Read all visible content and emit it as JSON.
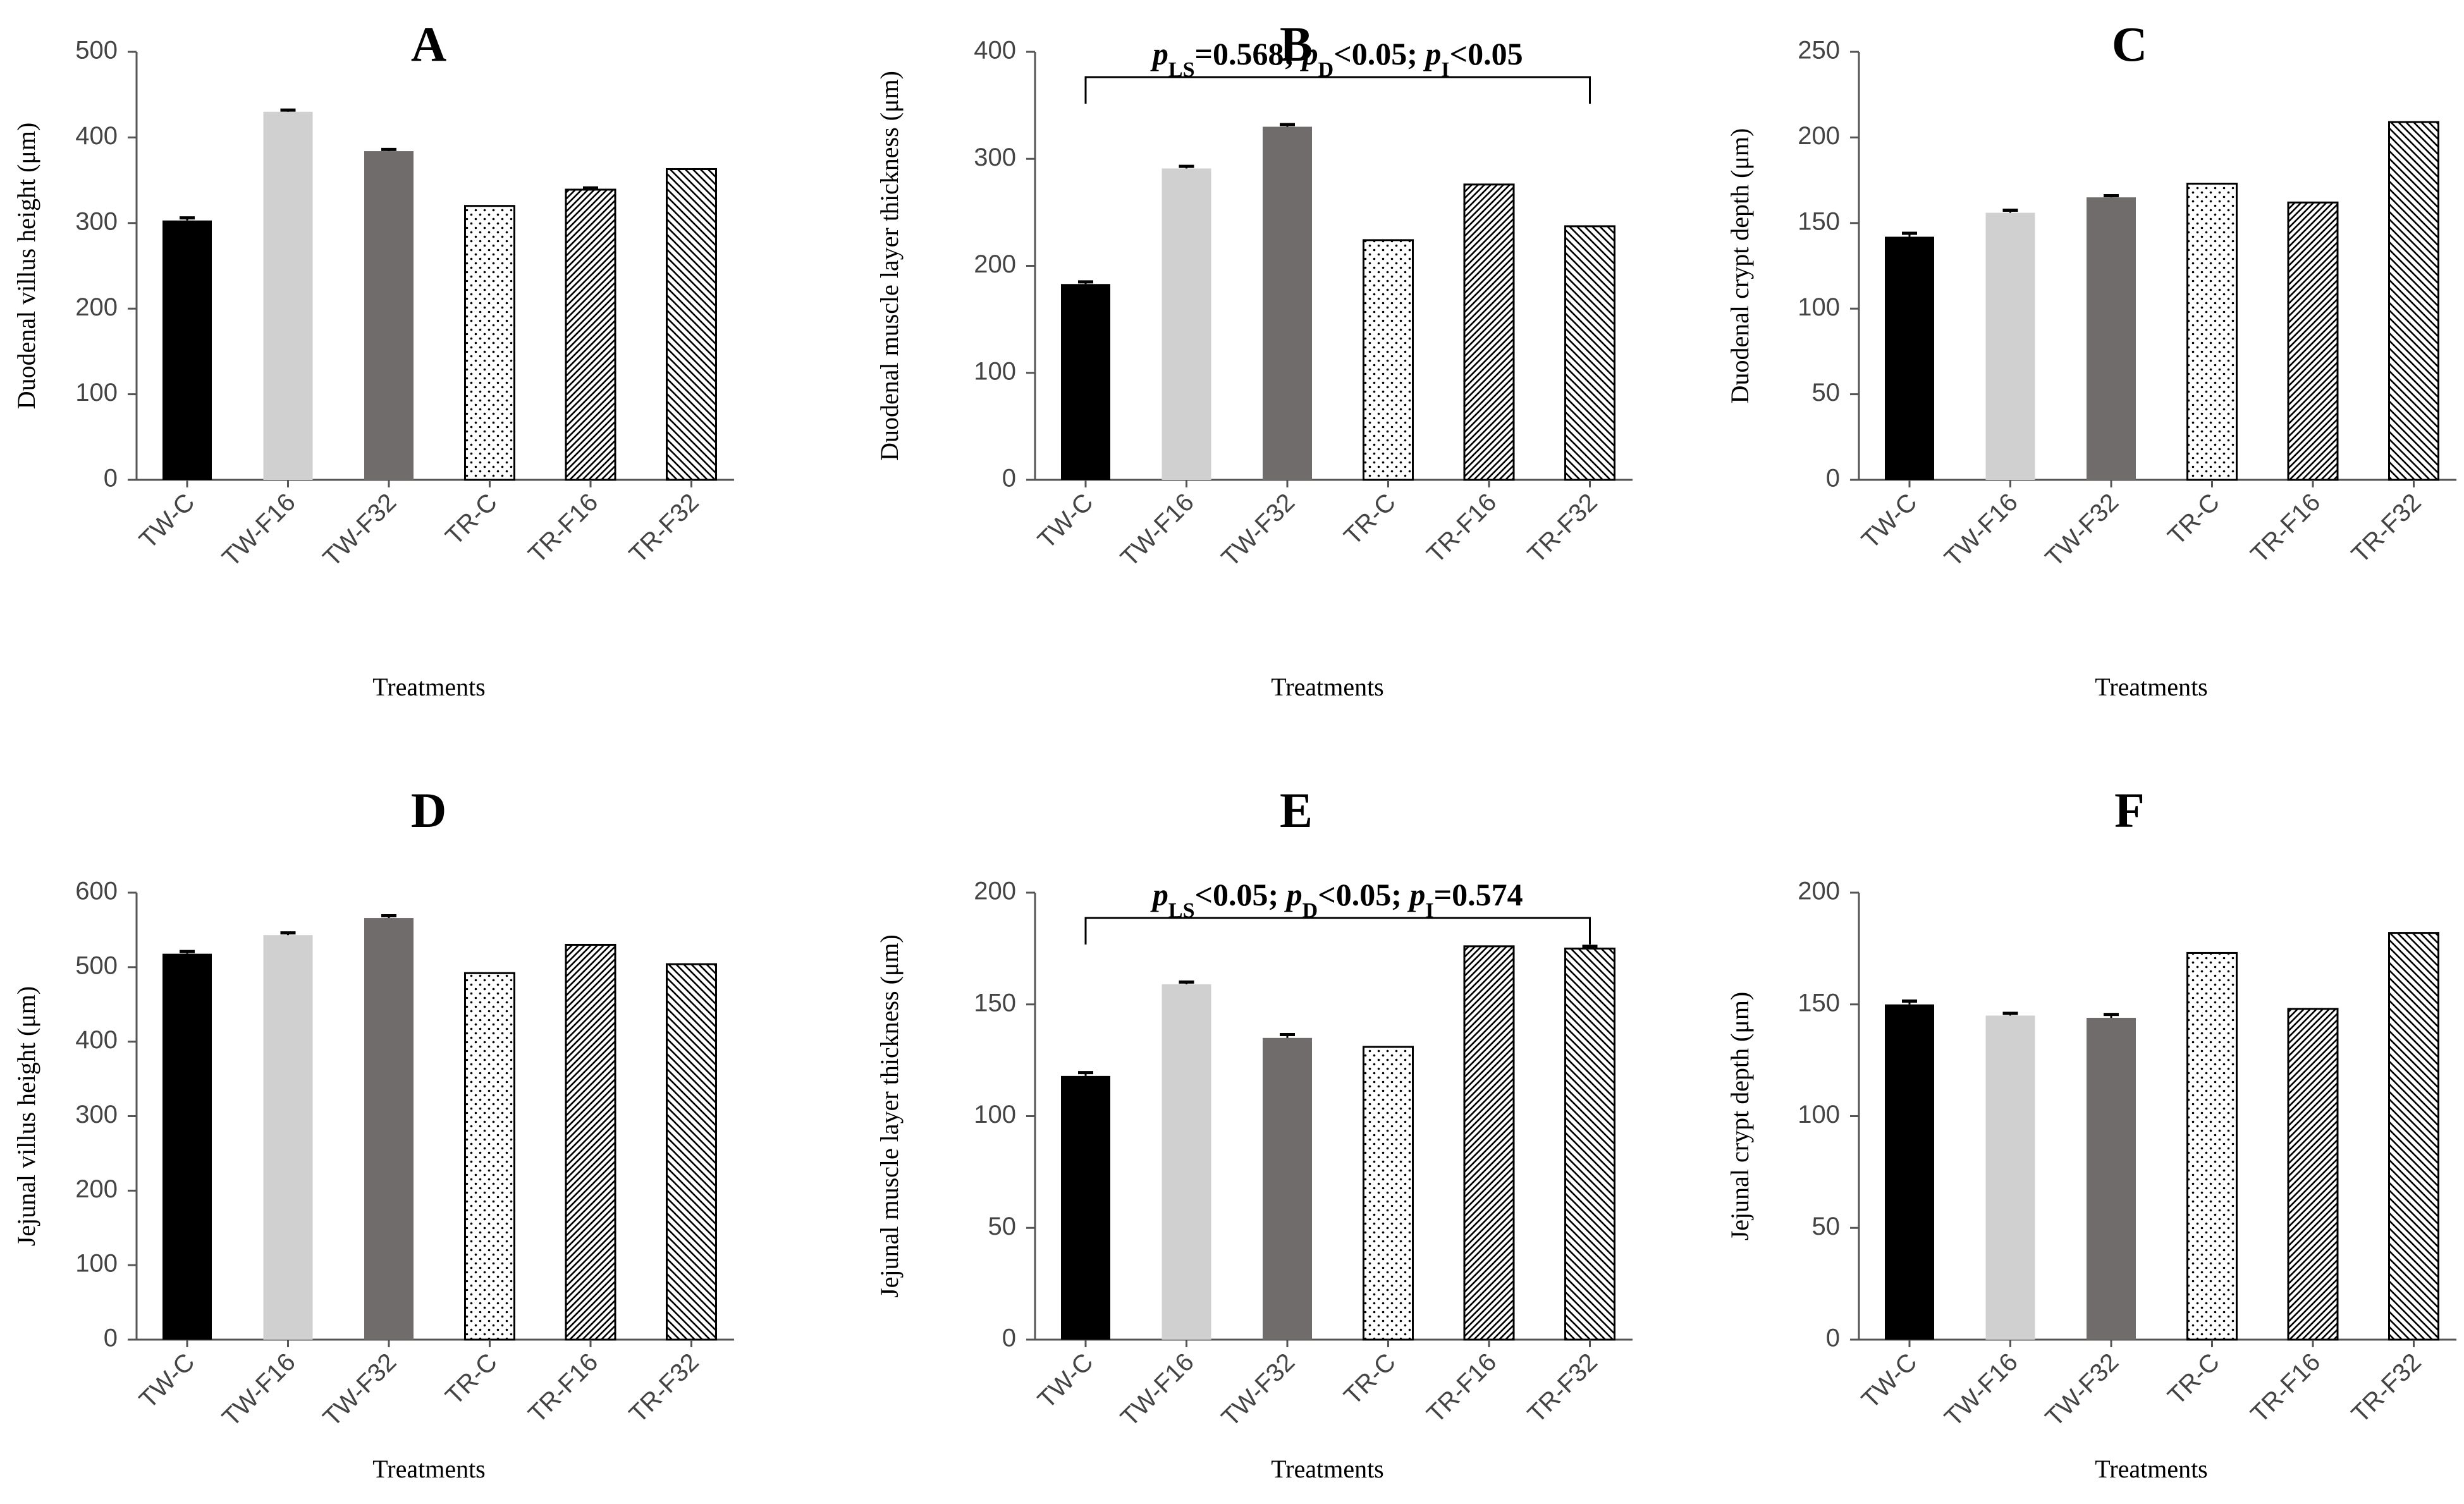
{
  "figure": {
    "shared_categories": [
      "TW-C",
      "TW-F16",
      "TW-F32",
      "TR-C",
      "TR-F16",
      "TR-F32"
    ]
  },
  "chart_data": [
    {
      "panel": "A",
      "type": "bar",
      "title": "A",
      "ylabel": "Duodenal  villus  height  (μm)",
      "xlabel": "Treatments",
      "categories": [
        "TW-C",
        "TW-F16",
        "TW-F32",
        "TR-C",
        "TR-F16",
        "TR-F32"
      ],
      "values": [
        303,
        430,
        384,
        320,
        339,
        363
      ],
      "errors": [
        3,
        2,
        2,
        0,
        2,
        0
      ],
      "ylim": [
        0,
        500
      ],
      "yticks": [
        0,
        100,
        200,
        300,
        400,
        500
      ],
      "annotation": null
    },
    {
      "panel": "B",
      "type": "bar",
      "title": "B",
      "ylabel": "Duodenal  muscle  layer  thickness  (μm)",
      "xlabel": "Treatments",
      "categories": [
        "TW-C",
        "TW-F16",
        "TW-F32",
        "TR-C",
        "TR-F16",
        "TR-F32"
      ],
      "values": [
        183,
        291,
        330,
        224,
        276,
        237
      ],
      "errors": [
        2,
        2,
        2,
        0,
        0,
        0
      ],
      "ylim": [
        0,
        400
      ],
      "yticks": [
        0,
        100,
        200,
        300,
        400
      ],
      "annotation": {
        "p1": "p",
        "s1": "LS",
        "t1": "=0.568; ",
        "p2": "p",
        "s2": "D",
        "t2": "<0.05; ",
        "p3": "p",
        "s3": "I",
        "t3": "<0.05",
        "from": "TW-C",
        "to": "TR-F32"
      }
    },
    {
      "panel": "C",
      "type": "bar",
      "title": "C",
      "ylabel": "Duodenal  crypt  depth  (μm)",
      "xlabel": "Treatments",
      "categories": [
        "TW-C",
        "TW-F16",
        "TW-F32",
        "TR-C",
        "TR-F16",
        "TR-F32"
      ],
      "values": [
        142,
        156,
        165,
        173,
        162,
        209
      ],
      "errors": [
        2,
        1.5,
        1,
        0,
        0,
        0
      ],
      "ylim": [
        0,
        250
      ],
      "yticks": [
        0,
        50,
        100,
        150,
        200,
        250
      ],
      "annotation": null
    },
    {
      "panel": "D",
      "type": "bar",
      "title": "D",
      "ylabel": "Jejunal  villus  height  (μm)",
      "xlabel": "Treatments",
      "categories": [
        "TW-C",
        "TW-F16",
        "TW-F32",
        "TR-C",
        "TR-F16",
        "TR-F32"
      ],
      "values": [
        518,
        543,
        566,
        492,
        530,
        504
      ],
      "errors": [
        3,
        3,
        3,
        0,
        0,
        0
      ],
      "ylim": [
        0,
        600
      ],
      "yticks": [
        0,
        100,
        200,
        300,
        400,
        500,
        600
      ],
      "annotation": null
    },
    {
      "panel": "E",
      "type": "bar",
      "title": "E",
      "ylabel": "Jejunal  muscle  layer  thickness  (μm)",
      "xlabel": "Treatments",
      "categories": [
        "TW-C",
        "TW-F16",
        "TW-F32",
        "TR-C",
        "TR-F16",
        "TR-F32"
      ],
      "values": [
        118,
        159,
        135,
        131,
        176,
        175
      ],
      "errors": [
        1.5,
        1,
        1.5,
        0,
        0,
        1
      ],
      "ylim": [
        0,
        200
      ],
      "yticks": [
        0,
        50,
        100,
        150,
        200
      ],
      "annotation": {
        "p1": "p",
        "s1": "LS",
        "t1": "<0.05; ",
        "p2": "p",
        "s2": "D",
        "t2": "<0.05; ",
        "p3": "p",
        "s3": "I",
        "t3": "=0.574",
        "from": "TW-C",
        "to": "TR-F32"
      }
    },
    {
      "panel": "F",
      "type": "bar",
      "title": "F",
      "ylabel": "Jejunal  crypt  depth  (μm)",
      "xlabel": "Treatments",
      "categories": [
        "TW-C",
        "TW-F16",
        "TW-F32",
        "TR-C",
        "TR-F16",
        "TR-F32"
      ],
      "values": [
        150,
        145,
        144,
        173,
        148,
        182
      ],
      "errors": [
        1.5,
        1,
        1.5,
        0,
        0,
        0
      ],
      "ylim": [
        0,
        200
      ],
      "yticks": [
        0,
        50,
        100,
        150,
        200
      ],
      "annotation": null
    }
  ],
  "colors": {
    "TW-C": "#000000",
    "TW-F16": "#d0d0d0",
    "TW-F32": "#716c6c",
    "axis": "#555555",
    "pattern_ink": "#000000"
  }
}
